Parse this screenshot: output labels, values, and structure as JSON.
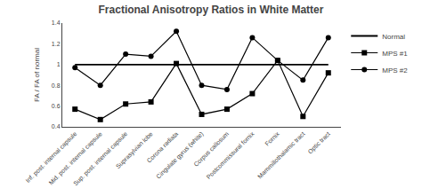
{
  "chart_data": {
    "type": "line",
    "title": "Fractional Anisotropy Ratios in White Matter",
    "y_label": "FA / FA of normal",
    "categories": [
      "Inf. post. internal capsule",
      "Mid. post. internal capsule",
      "Sup. post. internal capsule",
      "Suprasylvian lobe",
      "Corona radiata",
      "Cingulate gyrus (white)",
      "Corpus callosum",
      "Postcommissural fornix",
      "Fornix",
      "Mammillothalamic tract",
      "Optic tract"
    ],
    "series": [
      {
        "name": "Normal",
        "color": "#000000",
        "marker": "none",
        "values": [
          1.0,
          1.0,
          1.0,
          1.0,
          1.0,
          1.0,
          1.0,
          1.0,
          1.0,
          1.0,
          1.0
        ]
      },
      {
        "name": "MPS #1",
        "color": "#000000",
        "marker": "square",
        "values": [
          0.57,
          0.47,
          0.62,
          0.64,
          1.01,
          0.52,
          0.57,
          0.72,
          1.04,
          0.5,
          0.92
        ]
      },
      {
        "name": "MPS #2",
        "color": "#000000",
        "marker": "circle",
        "values": [
          0.97,
          0.8,
          1.1,
          1.08,
          1.32,
          0.8,
          0.76,
          1.26,
          1.04,
          0.85,
          1.26
        ]
      }
    ],
    "ylim": [
      0.4,
      1.4
    ],
    "yticks": [
      0.4,
      0.6,
      0.8,
      1.0,
      1.2,
      1.4
    ],
    "grid": false,
    "legend": "upper right"
  }
}
